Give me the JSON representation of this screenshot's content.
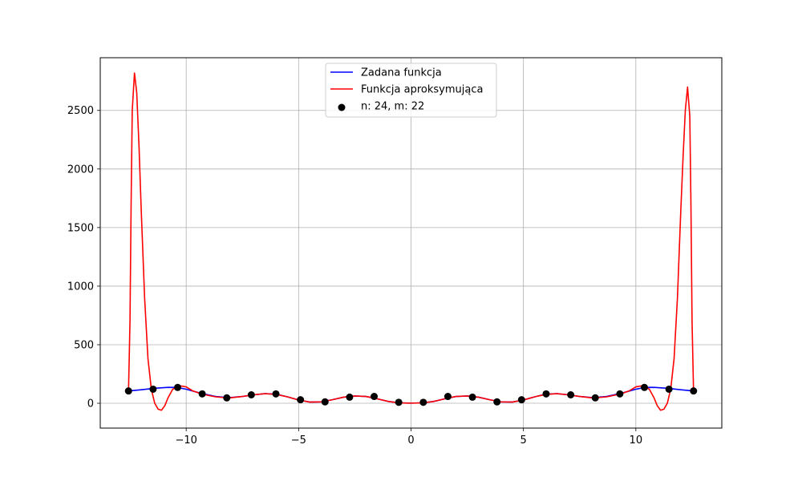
{
  "chart_data": {
    "type": "line",
    "title": "",
    "xlabel": "",
    "ylabel": "",
    "xlim": [
      -13.823,
      13.823
    ],
    "ylim": [
      -212,
      2950
    ],
    "grid": true,
    "legend_position": "top-center",
    "x_ticks": [
      -10,
      -5,
      0,
      5,
      10
    ],
    "x_tick_labels": [
      "−10",
      "−5",
      "0",
      "5",
      "10"
    ],
    "y_ticks": [
      0,
      500,
      1000,
      1500,
      2000,
      2500
    ],
    "y_tick_labels": [
      "0",
      "500",
      "1000",
      "1500",
      "2000",
      "2500"
    ],
    "series": [
      {
        "name": "Zadana funkcja",
        "kind": "line",
        "color": "#0000ff",
        "x": [
          -12.566,
          -12.0,
          -11.4,
          -10.8,
          -10.4,
          -10.0,
          -9.4,
          -8.7,
          -8.1,
          -7.5,
          -7.0,
          -6.5,
          -6.0,
          -5.5,
          -5.0,
          -4.5,
          -4.0,
          -3.5,
          -3.0,
          -2.5,
          -2.0,
          -1.5,
          -1.0,
          -0.5,
          0.0,
          0.5,
          1.0,
          1.5,
          2.0,
          2.5,
          3.0,
          3.5,
          4.0,
          4.5,
          5.0,
          5.5,
          6.0,
          6.5,
          7.0,
          7.5,
          8.1,
          8.7,
          9.4,
          10.0,
          10.4,
          10.8,
          11.4,
          12.0,
          12.566
        ],
        "y": [
          105,
          115,
          128,
          136,
          135,
          120,
          88,
          58,
          48,
          58,
          72,
          82,
          78,
          55,
          28,
          10,
          12,
          30,
          52,
          62,
          58,
          38,
          15,
          3,
          1,
          3,
          15,
          38,
          58,
          62,
          52,
          30,
          12,
          10,
          28,
          55,
          78,
          82,
          72,
          58,
          48,
          58,
          88,
          120,
          135,
          136,
          128,
          115,
          105
        ]
      },
      {
        "name": "Funkcja aproksymująca",
        "kind": "line",
        "color": "#ff0000",
        "x": [
          -12.566,
          -12.5,
          -12.45,
          -12.4,
          -12.3,
          -12.2,
          -12.1,
          -12.0,
          -11.85,
          -11.7,
          -11.55,
          -11.4,
          -11.25,
          -11.1,
          -10.95,
          -10.8,
          -10.6,
          -10.3,
          -10.0,
          -9.7,
          -9.3,
          -8.7,
          -8.1,
          -7.5,
          -7.0,
          -6.5,
          -6.0,
          -5.5,
          -5.0,
          -4.5,
          -4.0,
          -3.5,
          -3.0,
          -2.5,
          -2.0,
          -1.5,
          -1.0,
          -0.5,
          0.0,
          0.5,
          1.0,
          1.5,
          2.0,
          2.5,
          3.0,
          3.5,
          4.0,
          4.5,
          5.0,
          5.5,
          6.0,
          6.5,
          7.0,
          7.5,
          8.1,
          8.7,
          9.3,
          9.7,
          10.0,
          10.3,
          10.6,
          10.8,
          10.95,
          11.1,
          11.25,
          11.4,
          11.55,
          11.7,
          11.85,
          12.0,
          12.1,
          12.2,
          12.3,
          12.4,
          12.45,
          12.5,
          12.566
        ],
        "y": [
          105,
          700,
          1700,
          2500,
          2820,
          2650,
          2200,
          1650,
          900,
          380,
          120,
          0,
          -50,
          -60,
          -20,
          50,
          120,
          150,
          140,
          105,
          78,
          55,
          45,
          58,
          72,
          82,
          76,
          55,
          28,
          10,
          12,
          30,
          52,
          62,
          58,
          38,
          15,
          3,
          1,
          3,
          15,
          38,
          58,
          62,
          52,
          30,
          12,
          10,
          28,
          55,
          76,
          82,
          72,
          58,
          45,
          55,
          78,
          105,
          140,
          150,
          120,
          50,
          -20,
          -60,
          -50,
          0,
          120,
          380,
          900,
          1650,
          2100,
          2500,
          2700,
          2450,
          1700,
          700,
          105
        ]
      },
      {
        "name": "n: 24, m: 22",
        "kind": "scatter",
        "color": "#000000",
        "x": [
          -12.566,
          -11.473,
          -10.38,
          -9.288,
          -8.195,
          -7.103,
          -6.01,
          -4.917,
          -3.825,
          -2.732,
          -1.639,
          -0.546,
          0.546,
          1.639,
          2.732,
          3.825,
          4.917,
          6.01,
          7.103,
          8.195,
          9.288,
          10.38,
          11.473,
          12.566
        ],
        "y": [
          105,
          120,
          135,
          80,
          46,
          72,
          80,
          30,
          12,
          52,
          58,
          8,
          8,
          58,
          52,
          12,
          30,
          80,
          72,
          46,
          80,
          135,
          120,
          105
        ]
      }
    ]
  }
}
